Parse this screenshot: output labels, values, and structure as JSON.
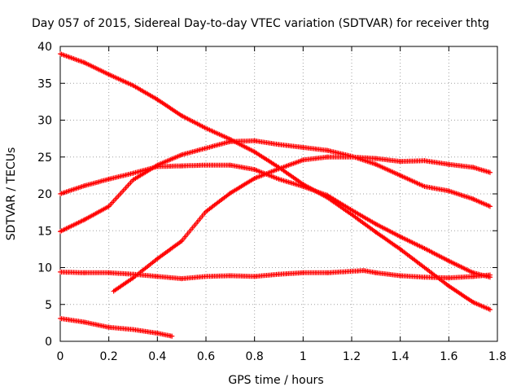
{
  "chart_data": {
    "type": "scatter",
    "title": "Day 057 of 2015, Sidereal Day-to-day VTEC variation (SDTVAR) for receiver thtg",
    "xlabel": "GPS time / hours",
    "ylabel": "SDTVAR / TECUs",
    "xlim": [
      0,
      1.8
    ],
    "ylim": [
      0,
      40
    ],
    "xticks": [
      0,
      0.2,
      0.4,
      0.6,
      0.8,
      1,
      1.2,
      1.4,
      1.6,
      1.8
    ],
    "xtick_labels": [
      "0",
      "0.2",
      "0.4",
      "0.6",
      "0.8",
      "1",
      "1.2",
      "1.4",
      "1.6",
      "1.8"
    ],
    "yticks": [
      0,
      5,
      10,
      15,
      20,
      25,
      30,
      35,
      40
    ],
    "ytick_labels": [
      "0",
      "5",
      "10",
      "15",
      "20",
      "25",
      "30",
      "35",
      "40"
    ],
    "grid": true,
    "marker": "plus",
    "color": "#ff0000",
    "series": [
      {
        "name": "trace-1",
        "x": [
          0,
          0.1,
          0.2,
          0.3,
          0.4,
          0.5,
          0.6,
          0.7,
          0.8,
          0.9,
          1.0,
          1.1,
          1.2,
          1.3,
          1.4,
          1.5,
          1.6,
          1.7,
          1.77
        ],
        "y": [
          39,
          37.8,
          36.2,
          34.7,
          32.8,
          30.6,
          28.9,
          27.4,
          25.7,
          23.6,
          21.3,
          19.5,
          17.2,
          14.8,
          12.5,
          10.0,
          7.5,
          5.3,
          4.3
        ]
      },
      {
        "name": "trace-2",
        "x": [
          0,
          0.1,
          0.2,
          0.3,
          0.4,
          0.5,
          0.6,
          0.7,
          0.8,
          0.9,
          1.0,
          1.1,
          1.2,
          1.3,
          1.4,
          1.5,
          1.6,
          1.7,
          1.77
        ],
        "y": [
          20,
          21.1,
          22.0,
          22.8,
          23.7,
          23.8,
          23.9,
          23.9,
          23.3,
          22.0,
          21.0,
          19.8,
          17.8,
          15.9,
          14.2,
          12.6,
          10.9,
          9.3,
          8.7
        ]
      },
      {
        "name": "trace-3",
        "x": [
          0,
          0.1,
          0.2,
          0.3,
          0.4,
          0.5,
          0.6,
          0.7,
          0.8,
          0.9,
          1.0,
          1.1,
          1.2,
          1.3,
          1.4,
          1.5,
          1.6,
          1.7,
          1.77
        ],
        "y": [
          14.9,
          16.5,
          18.3,
          21.9,
          23.9,
          25.3,
          26.2,
          27.1,
          27.2,
          26.7,
          26.3,
          25.9,
          25.1,
          24.0,
          22.5,
          21.0,
          20.4,
          19.3,
          18.3
        ]
      },
      {
        "name": "trace-4",
        "x": [
          0.22,
          0.3,
          0.4,
          0.5,
          0.6,
          0.7,
          0.8,
          0.9,
          1.0,
          1.1,
          1.2,
          1.3,
          1.4,
          1.5,
          1.6,
          1.7,
          1.77
        ],
        "y": [
          6.8,
          8.6,
          11.2,
          13.6,
          17.6,
          20.1,
          22.1,
          23.4,
          24.6,
          25.0,
          25.0,
          24.8,
          24.4,
          24.5,
          24.0,
          23.6,
          22.9
        ]
      },
      {
        "name": "trace-5",
        "x": [
          0,
          0.1,
          0.2,
          0.3,
          0.4,
          0.5,
          0.6,
          0.7,
          0.8,
          0.9,
          1.0,
          1.1,
          1.2,
          1.25,
          1.3,
          1.4,
          1.5,
          1.6,
          1.7,
          1.77
        ],
        "y": [
          9.4,
          9.3,
          9.3,
          9.1,
          8.8,
          8.5,
          8.8,
          8.9,
          8.8,
          9.1,
          9.3,
          9.3,
          9.5,
          9.6,
          9.3,
          8.9,
          8.7,
          8.6,
          8.8,
          9.0
        ]
      },
      {
        "name": "trace-6",
        "x": [
          0,
          0.1,
          0.2,
          0.3,
          0.4,
          0.46
        ],
        "y": [
          3.1,
          2.6,
          1.9,
          1.6,
          1.1,
          0.7
        ]
      }
    ]
  }
}
